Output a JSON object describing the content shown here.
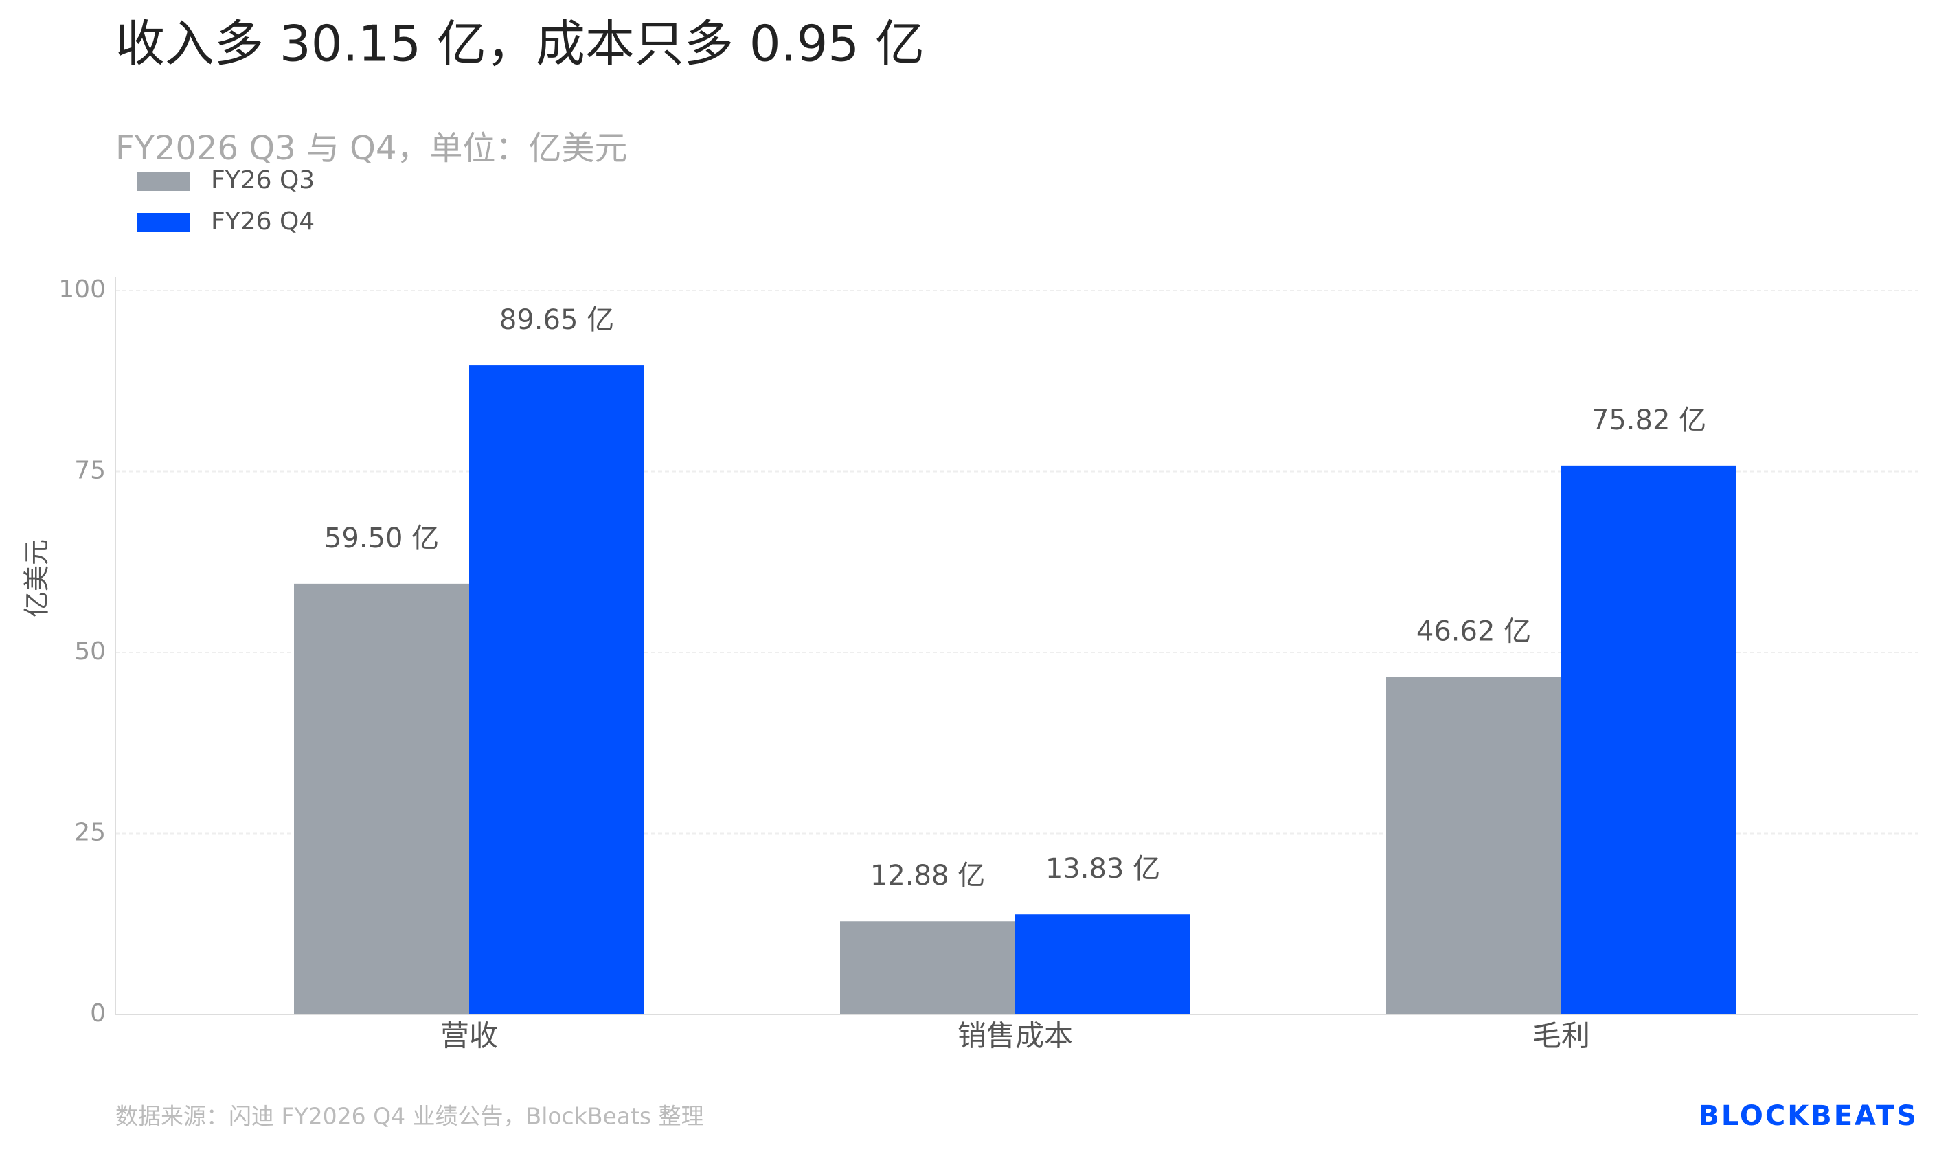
{
  "chart_data": {
    "type": "bar",
    "title": "收入多 30.15 亿，成本只多 0.95 亿",
    "subtitle": "FY2026 Q3 与 Q4，单位：亿美元",
    "y_label": "亿美元",
    "categories": [
      "营收",
      "销售成本",
      "毛利"
    ],
    "series": [
      {
        "name": "FY26 Q3",
        "color": "#9ca3ab",
        "values": [
          59.5,
          12.88,
          46.62
        ],
        "value_labels": [
          "59.50 亿",
          "12.88 亿",
          "46.62 亿"
        ]
      },
      {
        "name": "FY26 Q4",
        "color": "#0050ff",
        "values": [
          89.65,
          13.83,
          75.82
        ],
        "value_labels": [
          "89.65 亿",
          "13.83 亿",
          "75.82 亿"
        ]
      }
    ],
    "ylim": [
      0,
      100
    ],
    "yticks": [
      0,
      25,
      50,
      75,
      100
    ],
    "grid": true,
    "legend": "upper left",
    "source": "数据来源：闪迪 FY2026 Q4 业绩公告，BlockBeats 整理",
    "logo": "BLOCKBEATS"
  }
}
